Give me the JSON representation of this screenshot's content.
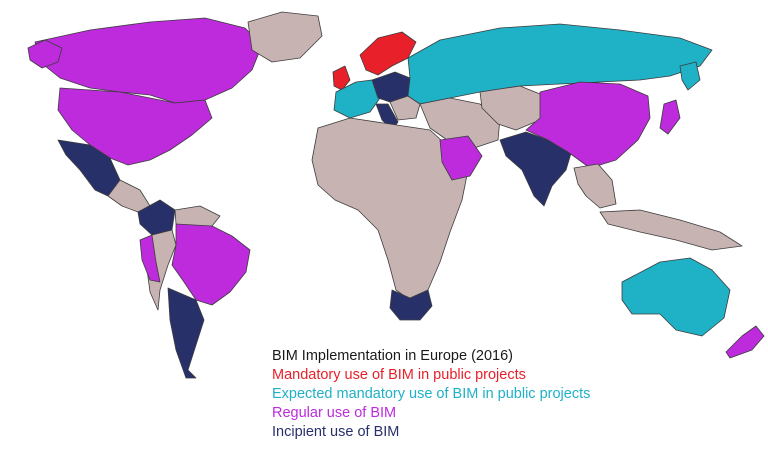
{
  "legend": {
    "title": "BIM Implementation in Europe (2016)",
    "title_color": "#1a1a1a",
    "categories": [
      {
        "key": "mandatory",
        "label": "Mandatory use of BIM in public projects",
        "color": "#e8202a"
      },
      {
        "key": "expected",
        "label": "Expected mandatory use of BIM in public projects",
        "color": "#1fb1c6"
      },
      {
        "key": "regular",
        "label": "Regular use of BIM",
        "color": "#bd2bdd"
      },
      {
        "key": "incipient",
        "label": "Incipient use of BIM",
        "color": "#28306a"
      }
    ]
  },
  "no_data_color": "#c7b3b2",
  "ocean_color": "#ffffff"
}
